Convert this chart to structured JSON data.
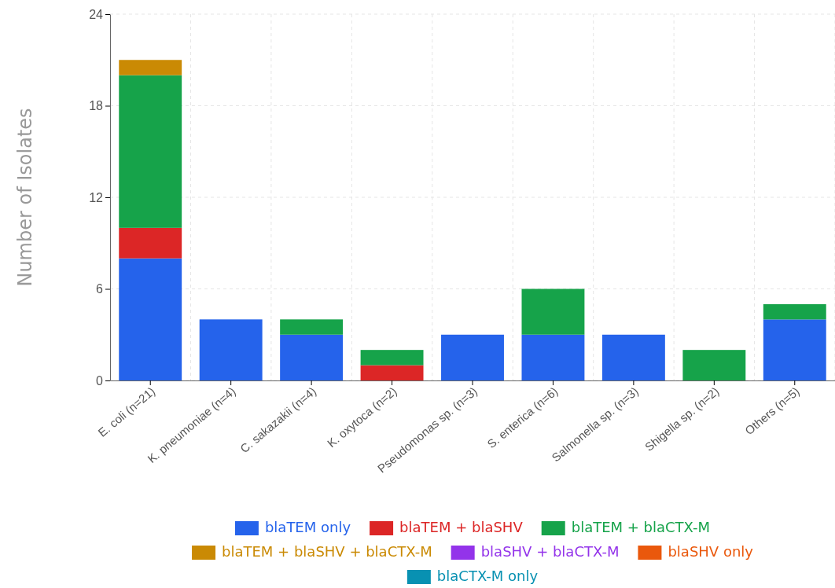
{
  "chart_data": {
    "type": "bar",
    "stacked": true,
    "ylabel": "Number of Isolates",
    "categories": [
      "E. coli (n=21)",
      "K. pneumoniae (n=4)",
      "C. sakazakii (n=4)",
      "K. oxytoca (n=2)",
      "Pseudomonas sp. (n=3)",
      "S. enterica (n=6)",
      "Salmonella sp. (n=3)",
      "Shigella sp. (n=2)",
      "Others (n=5)"
    ],
    "series": [
      {
        "name": "blaTEM only",
        "color": "#2563eb",
        "values": [
          8,
          4,
          3,
          0,
          3,
          3,
          3,
          0,
          4
        ]
      },
      {
        "name": "blaTEM + blaSHV",
        "color": "#dc2626",
        "values": [
          2,
          0,
          0,
          1,
          0,
          0,
          0,
          0,
          0
        ]
      },
      {
        "name": "blaTEM + blaCTX-M",
        "color": "#16a34a",
        "values": [
          10,
          0,
          1,
          1,
          0,
          3,
          0,
          2,
          1
        ]
      },
      {
        "name": "blaTEM + blaSHV + blaCTX-M",
        "color": "#ca8a04",
        "values": [
          1,
          0,
          0,
          0,
          0,
          0,
          0,
          0,
          0
        ]
      },
      {
        "name": "blaSHV + blaCTX-M",
        "color": "#9333ea",
        "values": [
          0,
          0,
          0,
          0,
          0,
          0,
          0,
          0,
          0
        ]
      },
      {
        "name": "blaSHV only",
        "color": "#ea580c",
        "values": [
          0,
          0,
          0,
          0,
          0,
          0,
          0,
          0,
          0
        ]
      },
      {
        "name": "blaCTX-M only",
        "color": "#0891b2",
        "values": [
          0,
          0,
          0,
          0,
          0,
          0,
          0,
          0,
          0
        ]
      }
    ],
    "ylim": [
      0,
      24
    ],
    "yticks": [
      0,
      6,
      12,
      18,
      24
    ],
    "grid": true,
    "legend": "bottom"
  }
}
